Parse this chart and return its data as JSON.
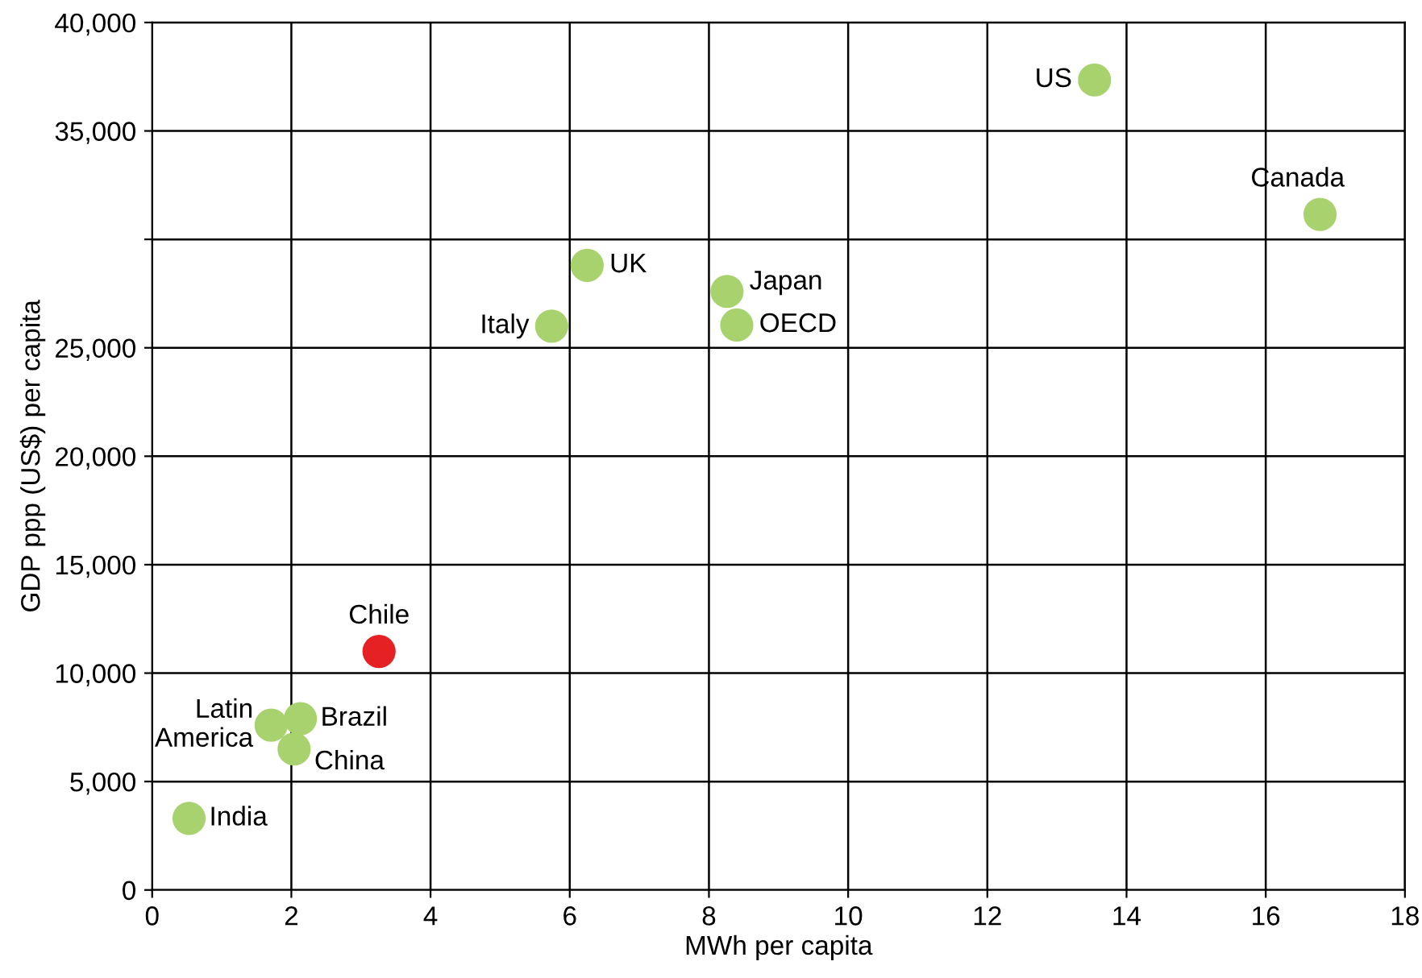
{
  "chart_data": {
    "type": "scatter",
    "xlabel": "MWh per capita",
    "ylabel": "GDP ppp (US$) per capita",
    "x": [
      13.54,
      16.78,
      6.25,
      8.26,
      8.4,
      5.74,
      3.26,
      1.71,
      2.13,
      2.04,
      0.53
    ],
    "values": [
      37350,
      31150,
      28800,
      27600,
      26050,
      26000,
      11000,
      7600,
      7900,
      6500,
      3300
    ],
    "colors": [
      "#a8d26e",
      "#a8d26e",
      "#a8d26e",
      "#a8d26e",
      "#a8d26e",
      "#a8d26e",
      "#e52124",
      "#a8d26e",
      "#a8d26e",
      "#a8d26e",
      "#a8d26e"
    ],
    "annotations": [
      {
        "text": "US",
        "x": 13.54,
        "y": 37350
      },
      {
        "text": "Canada",
        "x": 16.78,
        "y": 31150
      },
      {
        "text": "UK",
        "x": 6.25,
        "y": 28800
      },
      {
        "text": "Japan",
        "x": 8.26,
        "y": 27600
      },
      {
        "text": "OECD",
        "x": 8.4,
        "y": 26050
      },
      {
        "text": "Italy",
        "x": 5.74,
        "y": 26000
      },
      {
        "text": "Chile",
        "x": 3.26,
        "y": 11000
      },
      {
        "text": "Latin\nAmerica",
        "x": 1.71,
        "y": 7600
      },
      {
        "text": "Brazil",
        "x": 2.13,
        "y": 7900
      },
      {
        "text": "China",
        "x": 2.04,
        "y": 6500
      },
      {
        "text": "India",
        "x": 0.53,
        "y": 3300
      }
    ],
    "xlim": [
      0,
      18
    ],
    "xticks": [
      0,
      2,
      4,
      6,
      8,
      10,
      12,
      14,
      16,
      18
    ],
    "ylim": [
      0,
      40000
    ],
    "yticks": [
      0,
      {
        "value": 5000,
        "label": "5,000"
      },
      {
        "value": 10000,
        "label": "10,000"
      },
      {
        "value": 15000,
        "label": "15,000"
      },
      {
        "value": 20000,
        "label": "20,000"
      },
      {
        "value": 25000,
        "label": "25,000"
      },
      {
        "value": 30000,
        "label": null
      },
      {
        "value": 35000,
        "label": "35,000"
      },
      {
        "value": 40000,
        "label": "40,000"
      }
    ],
    "grid": true,
    "marker": "circle"
  }
}
